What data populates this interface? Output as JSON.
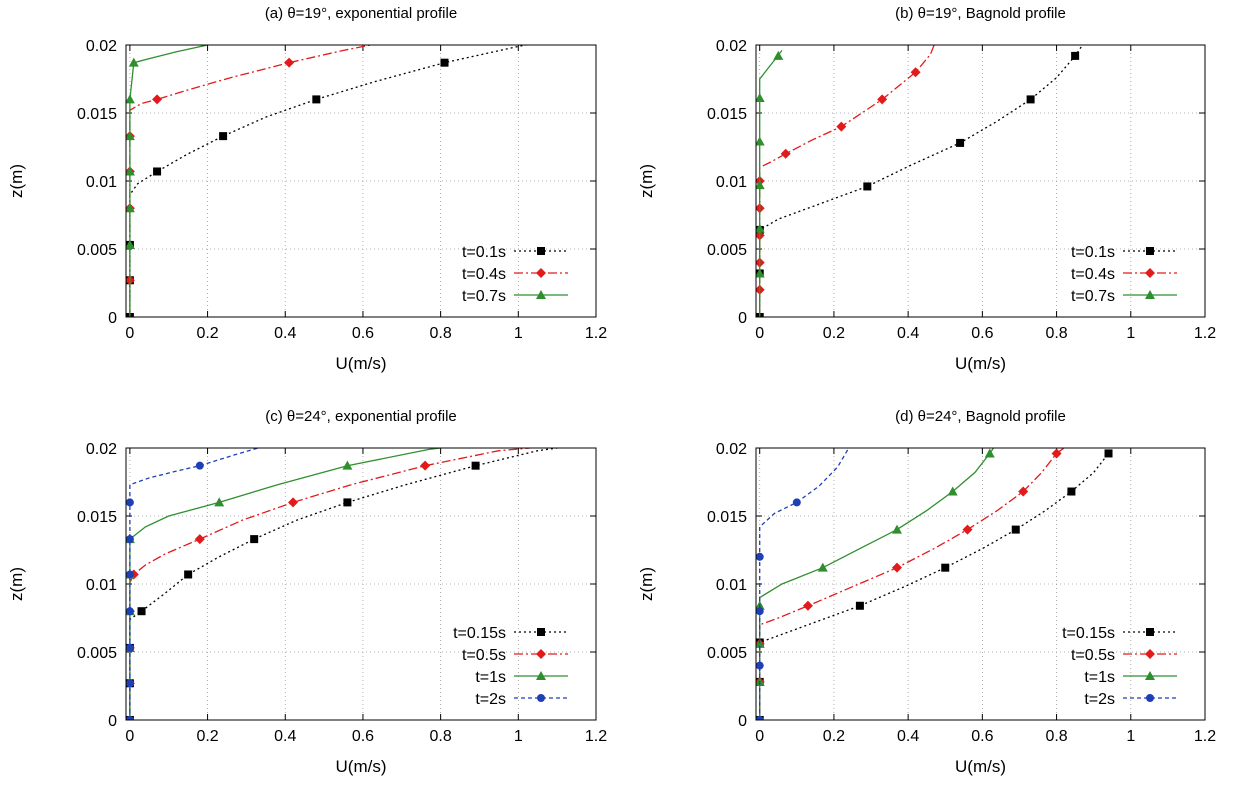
{
  "chart_data": [
    {
      "type": "line",
      "title": "(a) θ=19°, exponential profile",
      "xlabel": "U(m/s)",
      "ylabel": "z(m)",
      "xlim": [
        -0.01,
        1.2
      ],
      "ylim": [
        0,
        0.02
      ],
      "xticks": [
        "0",
        "0.2",
        "0.4",
        "0.6",
        "0.8",
        "1",
        "1.2"
      ],
      "yticks": [
        "0",
        "0.005",
        "0.01",
        "0.015",
        "0.02"
      ],
      "grid": true,
      "legend_position": "bottom-right",
      "series": [
        {
          "name": "t=0.1s",
          "color": "#000000",
          "dash": "2 3",
          "marker": "square",
          "x": [
            0,
            0,
            0,
            0,
            0,
            0,
            0.02,
            0.07,
            0.15,
            0.24,
            0.35,
            0.48,
            0.63,
            0.81,
            1.0,
            1.02
          ],
          "y": [
            0,
            0.0027,
            0.0053,
            0.008,
            0.0085,
            0.009,
            0.0098,
            0.0107,
            0.012,
            0.0133,
            0.0147,
            0.016,
            0.0173,
            0.0187,
            0.0199,
            0.02
          ],
          "markers_x": [
            0,
            0,
            0,
            0.07,
            0.24,
            0.48,
            0.81
          ],
          "markers_y": [
            0,
            0.0027,
            0.0053,
            0.0107,
            0.0133,
            0.016,
            0.0187
          ]
        },
        {
          "name": "t=0.4s",
          "color": "#e31a1c",
          "dash": "9 3 2 3",
          "marker": "diamond",
          "x": [
            0,
            0,
            0,
            0,
            0,
            0,
            0,
            0.03,
            0.07,
            0.15,
            0.26,
            0.41,
            0.55,
            0.62
          ],
          "y": [
            0,
            0.0027,
            0.0053,
            0.008,
            0.0107,
            0.0133,
            0.0152,
            0.0157,
            0.016,
            0.0167,
            0.0176,
            0.0187,
            0.0196,
            0.02
          ],
          "markers_x": [
            0,
            0,
            0,
            0,
            0.07,
            0.41
          ],
          "markers_y": [
            0.0027,
            0.008,
            0.0107,
            0.0133,
            0.016,
            0.0187
          ]
        },
        {
          "name": "t=0.7s",
          "color": "#2f8f2f",
          "dash": "",
          "marker": "triangle",
          "x": [
            0,
            0,
            0,
            0,
            0,
            0,
            0,
            0.01,
            0.05,
            0.12,
            0.2
          ],
          "y": [
            0,
            0.0027,
            0.0053,
            0.008,
            0.0107,
            0.0133,
            0.016,
            0.0187,
            0.019,
            0.0195,
            0.02
          ],
          "markers_x": [
            0,
            0,
            0,
            0,
            0,
            0.01
          ],
          "markers_y": [
            0.0053,
            0.008,
            0.0107,
            0.0133,
            0.016,
            0.0187
          ]
        }
      ]
    },
    {
      "type": "line",
      "title": "(b) θ=19°, Bagnold profile",
      "xlabel": "U(m/s)",
      "ylabel": "z(m)",
      "xlim": [
        -0.01,
        1.2
      ],
      "ylim": [
        0,
        0.02
      ],
      "xticks": [
        "0",
        "0.2",
        "0.4",
        "0.6",
        "0.8",
        "1",
        "1.2"
      ],
      "yticks": [
        "0",
        "0.005",
        "0.01",
        "0.015",
        "0.02"
      ],
      "grid": true,
      "legend_position": "bottom-right",
      "series": [
        {
          "name": "t=0.1s",
          "color": "#000000",
          "dash": "2 3",
          "marker": "square",
          "x": [
            0,
            0,
            0,
            0,
            0.05,
            0.15,
            0.29,
            0.41,
            0.54,
            0.64,
            0.73,
            0.8,
            0.85,
            0.87
          ],
          "y": [
            0,
            0.0032,
            0.0062,
            0.0064,
            0.0072,
            0.0082,
            0.0096,
            0.0112,
            0.0128,
            0.0144,
            0.016,
            0.0176,
            0.0192,
            0.02
          ],
          "markers_x": [
            0,
            0,
            0.29,
            0.54,
            0.73,
            0.85
          ],
          "markers_y": [
            0,
            0.0032,
            0.0096,
            0.0128,
            0.016,
            0.0192
          ],
          "extra_markers_x": [
            0
          ],
          "extra_markers_y": [
            0.0064
          ]
        },
        {
          "name": "t=0.4s",
          "color": "#e31a1c",
          "dash": "9 3 2 3",
          "marker": "diamond",
          "x": [
            0,
            0,
            0,
            0,
            0,
            0,
            0,
            0.03,
            0.07,
            0.14,
            0.22,
            0.33,
            0.42,
            0.46,
            0.47
          ],
          "y": [
            0,
            0.002,
            0.004,
            0.006,
            0.008,
            0.01,
            0.011,
            0.0114,
            0.012,
            0.013,
            0.014,
            0.016,
            0.018,
            0.0193,
            0.02
          ],
          "markers_x": [
            0,
            0,
            0,
            0,
            0,
            0.07,
            0.22,
            0.33,
            0.42
          ],
          "markers_y": [
            0.002,
            0.004,
            0.006,
            0.008,
            0.01,
            0.012,
            0.014,
            0.016,
            0.018
          ]
        },
        {
          "name": "t=0.7s",
          "color": "#2f8f2f",
          "dash": "",
          "marker": "triangle",
          "x": [
            0,
            0,
            0,
            0,
            0,
            0,
            0,
            0.02,
            0.04,
            0.06
          ],
          "y": [
            0,
            0.0032,
            0.0065,
            0.0097,
            0.0129,
            0.0161,
            0.0175,
            0.0182,
            0.0189,
            0.0196
          ],
          "markers_x": [
            0,
            0,
            0,
            0,
            0,
            0.05
          ],
          "markers_y": [
            0.0032,
            0.0065,
            0.0097,
            0.0129,
            0.0161,
            0.0192
          ]
        }
      ]
    },
    {
      "type": "line",
      "title": "(c) θ=24°, exponential profile",
      "xlabel": "U(m/s)",
      "ylabel": "z(m)",
      "xlim": [
        -0.01,
        1.2
      ],
      "ylim": [
        0,
        0.02
      ],
      "xticks": [
        "0",
        "0.2",
        "0.4",
        "0.6",
        "0.8",
        "1",
        "1.2"
      ],
      "yticks": [
        "0",
        "0.005",
        "0.01",
        "0.015",
        "0.02"
      ],
      "grid": true,
      "legend_position": "bottom-right",
      "series": [
        {
          "name": "t=0.15s",
          "color": "#000000",
          "dash": "2 3",
          "marker": "square",
          "x": [
            0,
            0,
            0,
            0,
            0,
            0.03,
            0.09,
            0.15,
            0.23,
            0.32,
            0.43,
            0.56,
            0.71,
            0.89,
            1.05,
            1.1
          ],
          "y": [
            0,
            0.0027,
            0.0053,
            0.007,
            0.0074,
            0.008,
            0.0093,
            0.0107,
            0.012,
            0.0133,
            0.0147,
            0.016,
            0.0173,
            0.0187,
            0.0198,
            0.02
          ],
          "markers_x": [
            0,
            0,
            0,
            0.03,
            0.15,
            0.32,
            0.56,
            0.89
          ],
          "markers_y": [
            0,
            0.0027,
            0.0053,
            0.008,
            0.0107,
            0.0133,
            0.016,
            0.0187
          ]
        },
        {
          "name": "t=0.5s",
          "color": "#e31a1c",
          "dash": "9 3 2 3",
          "marker": "diamond",
          "x": [
            0,
            0,
            0,
            0,
            0,
            0.01,
            0.04,
            0.09,
            0.18,
            0.29,
            0.42,
            0.57,
            0.76,
            0.95,
            1.03
          ],
          "y": [
            0,
            0.0027,
            0.0053,
            0.008,
            0.0101,
            0.0107,
            0.0114,
            0.0122,
            0.0133,
            0.0147,
            0.016,
            0.0173,
            0.0187,
            0.0198,
            0.02
          ],
          "markers_x": [
            0,
            0,
            0,
            0.01,
            0.18,
            0.42,
            0.76
          ],
          "markers_y": [
            0.0027,
            0.0053,
            0.008,
            0.0107,
            0.0133,
            0.016,
            0.0187
          ]
        },
        {
          "name": "t=1s",
          "color": "#2f8f2f",
          "dash": "",
          "marker": "triangle",
          "x": [
            0,
            0,
            0,
            0,
            0,
            0,
            0.04,
            0.1,
            0.23,
            0.38,
            0.56,
            0.77,
            0.8
          ],
          "y": [
            0,
            0.0027,
            0.0053,
            0.008,
            0.0107,
            0.0133,
            0.0142,
            0.015,
            0.016,
            0.0173,
            0.0187,
            0.0199,
            0.02
          ],
          "markers_x": [
            0,
            0,
            0,
            0,
            0.23,
            0.56
          ],
          "markers_y": [
            0.0053,
            0.008,
            0.0107,
            0.0133,
            0.016,
            0.0187
          ]
        },
        {
          "name": "t=2s",
          "color": "#1f3fb4",
          "dash": "4 3",
          "marker": "circle",
          "x": [
            0,
            0,
            0,
            0,
            0,
            0,
            0,
            0,
            0.05,
            0.12,
            0.18,
            0.27,
            0.33
          ],
          "y": [
            0,
            0.0027,
            0.0053,
            0.008,
            0.0107,
            0.0133,
            0.016,
            0.0173,
            0.0178,
            0.0183,
            0.0187,
            0.0195,
            0.02
          ],
          "markers_x": [
            0,
            0,
            0,
            0,
            0,
            0,
            0,
            0.18
          ],
          "markers_y": [
            0,
            0.0027,
            0.0053,
            0.008,
            0.0107,
            0.0133,
            0.016,
            0.0187
          ]
        }
      ]
    },
    {
      "type": "line",
      "title": "(d) θ=24°, Bagnold profile",
      "xlabel": "U(m/s)",
      "ylabel": "z(m)",
      "xlim": [
        -0.01,
        1.2
      ],
      "ylim": [
        0,
        0.02
      ],
      "xticks": [
        "0",
        "0.2",
        "0.4",
        "0.6",
        "0.8",
        "1",
        "1.2"
      ],
      "yticks": [
        "0",
        "0.005",
        "0.01",
        "0.015",
        "0.02"
      ],
      "grid": true,
      "legend_position": "bottom-right",
      "series": [
        {
          "name": "t=0.15s",
          "color": "#000000",
          "dash": "2 3",
          "marker": "square",
          "x": [
            0,
            0,
            0,
            0,
            0.08,
            0.27,
            0.39,
            0.5,
            0.6,
            0.69,
            0.77,
            0.84,
            0.9,
            0.94,
            0.95
          ],
          "y": [
            0,
            0.0028,
            0.0055,
            0.0057,
            0.0065,
            0.0084,
            0.0098,
            0.0112,
            0.0126,
            0.014,
            0.0154,
            0.0168,
            0.0182,
            0.0196,
            0.02
          ],
          "markers_x": [
            0,
            0,
            0,
            0.27,
            0.5,
            0.69,
            0.84,
            0.94
          ],
          "markers_y": [
            0,
            0.0028,
            0.0057,
            0.0084,
            0.0112,
            0.014,
            0.0168,
            0.0196
          ]
        },
        {
          "name": "t=0.5s",
          "color": "#e31a1c",
          "dash": "9 3 2 3",
          "marker": "diamond",
          "x": [
            0,
            0,
            0,
            0,
            0.05,
            0.13,
            0.25,
            0.37,
            0.47,
            0.56,
            0.64,
            0.71,
            0.76,
            0.8,
            0.82
          ],
          "y": [
            0,
            0.0028,
            0.0056,
            0.007,
            0.0075,
            0.0084,
            0.0098,
            0.0112,
            0.0126,
            0.014,
            0.0154,
            0.0168,
            0.0182,
            0.0196,
            0.02
          ],
          "markers_x": [
            0,
            0,
            0.13,
            0.37,
            0.56,
            0.71,
            0.8
          ],
          "markers_y": [
            0.0028,
            0.0056,
            0.0084,
            0.0112,
            0.014,
            0.0168,
            0.0196
          ]
        },
        {
          "name": "t=1s",
          "color": "#2f8f2f",
          "dash": "",
          "marker": "triangle",
          "x": [
            0,
            0,
            0,
            0,
            0.06,
            0.17,
            0.27,
            0.37,
            0.45,
            0.52,
            0.58,
            0.62,
            0.63
          ],
          "y": [
            0,
            0.0028,
            0.0056,
            0.009,
            0.01,
            0.0112,
            0.0126,
            0.014,
            0.0154,
            0.0168,
            0.0182,
            0.0196,
            0.02
          ],
          "markers_x": [
            0,
            0,
            0,
            0.17,
            0.37,
            0.52,
            0.62
          ],
          "markers_y": [
            0.0028,
            0.0056,
            0.0084,
            0.0112,
            0.014,
            0.0168,
            0.0196
          ]
        },
        {
          "name": "t=2s",
          "color": "#1f3fb4",
          "dash": "4 3",
          "marker": "circle",
          "x": [
            0,
            0,
            0,
            0,
            0,
            0,
            0.04,
            0.1,
            0.16,
            0.21,
            0.24
          ],
          "y": [
            0,
            0.004,
            0.008,
            0.012,
            0.014,
            0.0142,
            0.0152,
            0.016,
            0.0172,
            0.0186,
            0.02
          ],
          "markers_x": [
            0,
            0,
            0,
            0,
            0.1
          ],
          "markers_y": [
            0,
            0.004,
            0.008,
            0.012,
            0.016
          ]
        }
      ]
    }
  ]
}
